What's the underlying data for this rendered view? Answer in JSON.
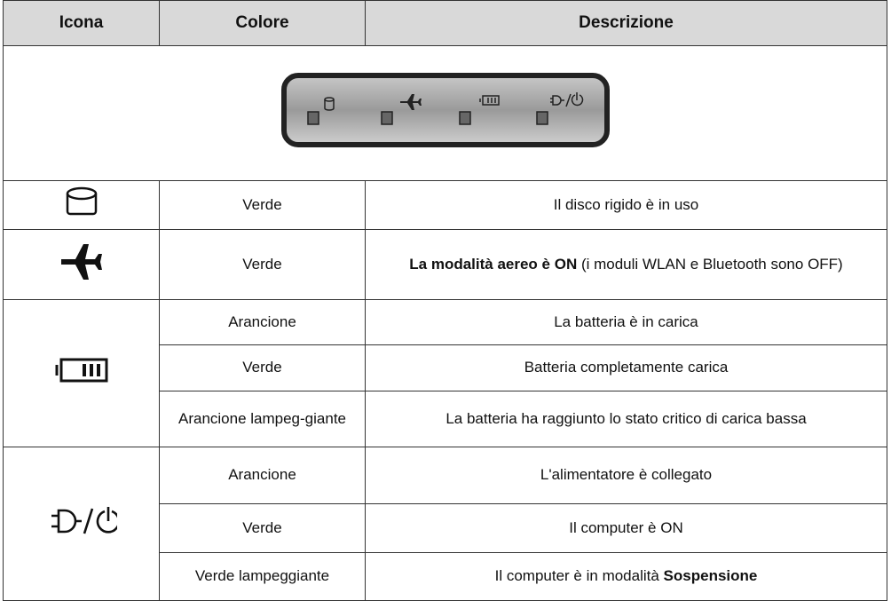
{
  "header": {
    "columns": [
      "Icona",
      "Colore",
      "Descrizione"
    ]
  },
  "table": {
    "groups": [
      {
        "states": [
          {
            "color": "Verde",
            "description": [
              {
                "text": "Il disco rigido è in uso"
              }
            ]
          }
        ]
      },
      {
        "states": [
          {
            "color": "Verde",
            "description": [
              {
                "text": "La modalità aereo è ON",
                "bold": true
              },
              {
                "text": " (i moduli WLAN e Bluetooth sono OFF)"
              }
            ]
          }
        ]
      },
      {
        "states": [
          {
            "color": "Arancione",
            "description": [
              {
                "text": "La batteria è in carica"
              }
            ]
          },
          {
            "color": "Verde",
            "description": [
              {
                "text": "Batteria completamente carica"
              }
            ]
          },
          {
            "color": "Arancione lampeg-giante",
            "description": [
              {
                "text": "La batteria ha raggiunto lo stato critico di carica bassa"
              }
            ]
          }
        ]
      },
      {
        "states": [
          {
            "color": "Arancione",
            "description": [
              {
                "text": "L'alimentatore è collegato"
              }
            ]
          },
          {
            "color": "Verde",
            "description": [
              {
                "text": "Il computer è ON"
              }
            ]
          },
          {
            "color": "Verde lampeggiante",
            "description": [
              {
                "text": "Il computer è in modalità "
              },
              {
                "text": "Sospensione",
                "bold": true
              }
            ]
          }
        ]
      }
    ]
  }
}
